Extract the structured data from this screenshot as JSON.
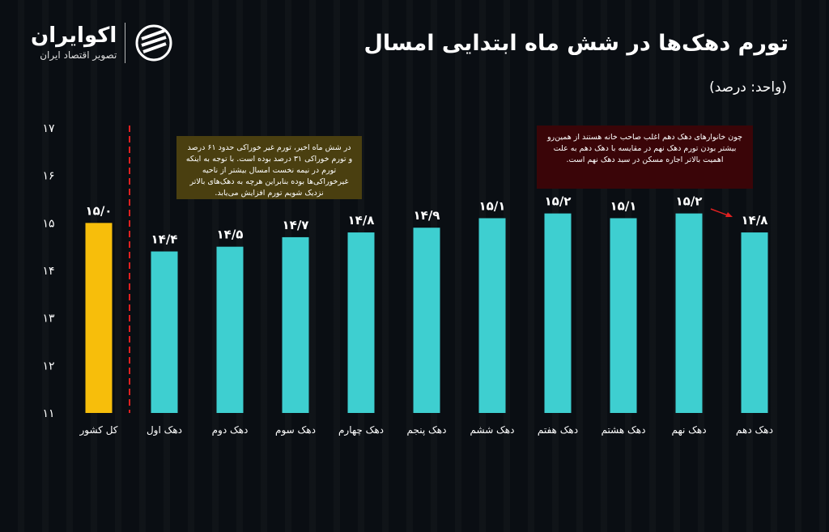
{
  "header": {
    "title": "تورم دهک‌ها در شش ماه ابتدایی امسال",
    "unit": "(واحد: درصد)"
  },
  "logo": {
    "name": "اکوایران",
    "tagline": "تصویر اقتصاد ایران"
  },
  "notes": [
    "در شش ماه اخیر، تورم غیر خوراکی حدود ۶۱ درصد و تورم خوراکی ۳۱ درصد بوده است. با توجه به اینکه تورم در نیمه نخست امسال بیشتر از ناحیه غیرخوراکی‌ها بوده بنابراین هرچه به دهک‌های بالاتر نزدیک شویم تورم افزایش می‌یابد.",
    "چون خانوارهای دهک دهم اغلب صاحب خانه هستند از همین‌رو بیشتر بودن تورم دهک نهم در مقایسه با دهک دهم به علت اهمیت بالاتر اجاره مسکن در سبد دهک نهم است."
  ],
  "chart_data": {
    "type": "bar",
    "categories": [
      "کل کشور",
      "دهک اول",
      "دهک دوم",
      "دهک سوم",
      "دهک چهارم",
      "دهک پنجم",
      "دهک ششم",
      "دهک هفتم",
      "دهک هشتم",
      "دهک نهم",
      "دهک دهم"
    ],
    "values": [
      15.0,
      14.4,
      14.5,
      14.7,
      14.8,
      14.9,
      15.1,
      15.2,
      15.1,
      15.2,
      14.8
    ],
    "data_labels": [
      "۱۵/۰",
      "۱۴/۴",
      "۱۴/۵",
      "۱۴/۷",
      "۱۴/۸",
      "۱۴/۹",
      "۱۵/۱",
      "۱۵/۲",
      "۱۵/۱",
      "۱۵/۲",
      "۱۴/۸"
    ],
    "ylim": [
      11,
      17
    ],
    "yticks": [
      11,
      12,
      13,
      14,
      15,
      16,
      17
    ],
    "ytick_labels": [
      "۱۱",
      "۱۲",
      "۱۳",
      "۱۴",
      "۱۵",
      "۱۶",
      "۱۷"
    ],
    "grid": false,
    "colors": {
      "total": "#f7be0b",
      "deciles": "#3ecfd0",
      "divider": "#e02020",
      "arrow": "#e02020"
    }
  }
}
